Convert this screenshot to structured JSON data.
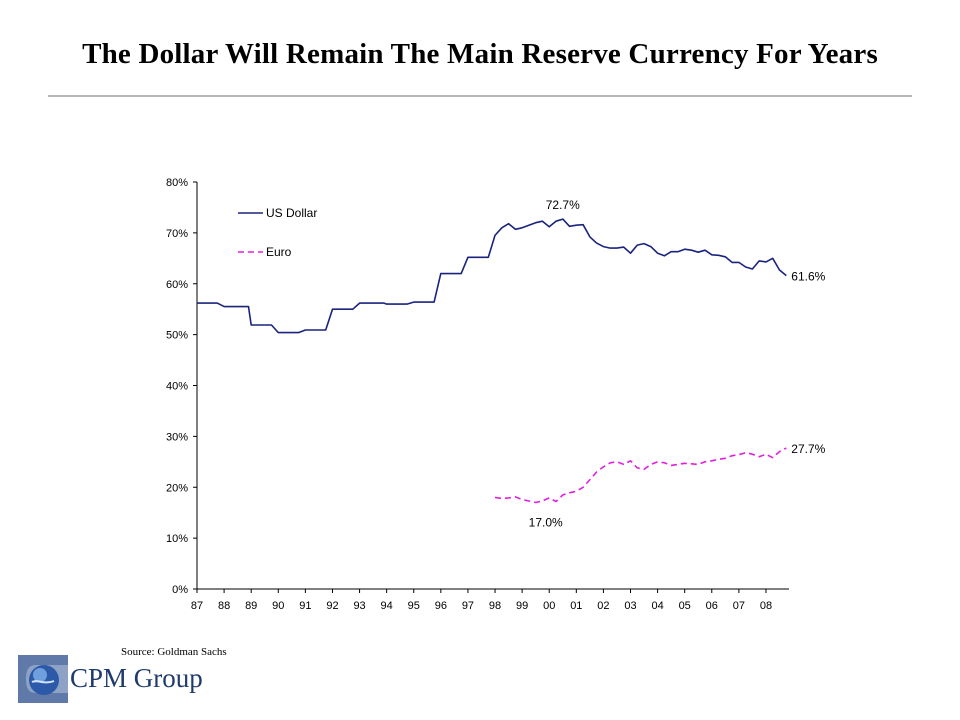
{
  "slide": {
    "title": "The Dollar Will Remain The Main Reserve Currency For Years",
    "source": "Source: Goldman Sachs",
    "brand_name": "CPM Group",
    "logo_icon": "globe-icon"
  },
  "chart_data": {
    "type": "line",
    "title": "",
    "xlabel": "",
    "ylabel": "",
    "x_ticks": [
      "87",
      "88",
      "89",
      "90",
      "91",
      "92",
      "93",
      "94",
      "95",
      "96",
      "97",
      "98",
      "99",
      "00",
      "01",
      "02",
      "03",
      "04",
      "05",
      "06",
      "07",
      "08"
    ],
    "xlim": [
      1987,
      2008.85
    ],
    "y_ticks": [
      "0%",
      "10%",
      "20%",
      "30%",
      "40%",
      "50%",
      "60%",
      "70%",
      "80%"
    ],
    "ylim": [
      0,
      80
    ],
    "grid": false,
    "legend_position": "top-left",
    "series": [
      {
        "name": "US Dollar",
        "color": "#1a237e",
        "style": "solid",
        "points": [
          [
            1987.0,
            56.2
          ],
          [
            1987.75,
            56.2
          ],
          [
            1988.0,
            55.5
          ],
          [
            1988.9,
            55.5
          ],
          [
            1989.0,
            51.9
          ],
          [
            1989.75,
            51.9
          ],
          [
            1990.0,
            50.4
          ],
          [
            1990.75,
            50.4
          ],
          [
            1991.0,
            50.9
          ],
          [
            1991.75,
            50.9
          ],
          [
            1992.0,
            55.0
          ],
          [
            1992.75,
            55.0
          ],
          [
            1993.0,
            56.2
          ],
          [
            1993.9,
            56.2
          ],
          [
            1994.0,
            56.0
          ],
          [
            1994.75,
            56.0
          ],
          [
            1995.0,
            56.4
          ],
          [
            1995.75,
            56.4
          ],
          [
            1996.0,
            62.0
          ],
          [
            1996.75,
            62.0
          ],
          [
            1997.0,
            65.2
          ],
          [
            1997.75,
            65.2
          ],
          [
            1998.0,
            69.5
          ],
          [
            1998.25,
            71.0
          ],
          [
            1998.5,
            71.8
          ],
          [
            1998.75,
            70.7
          ],
          [
            1999.0,
            71.0
          ],
          [
            1999.25,
            71.5
          ],
          [
            1999.5,
            72.0
          ],
          [
            1999.75,
            72.3
          ],
          [
            2000.0,
            71.2
          ],
          [
            2000.25,
            72.3
          ],
          [
            2000.5,
            72.7
          ],
          [
            2000.75,
            71.3
          ],
          [
            2001.0,
            71.5
          ],
          [
            2001.25,
            71.6
          ],
          [
            2001.5,
            69.2
          ],
          [
            2001.75,
            68.0
          ],
          [
            2002.0,
            67.3
          ],
          [
            2002.25,
            67.0
          ],
          [
            2002.5,
            67.0
          ],
          [
            2002.75,
            67.2
          ],
          [
            2003.0,
            66.0
          ],
          [
            2003.25,
            67.6
          ],
          [
            2003.5,
            67.9
          ],
          [
            2003.75,
            67.3
          ],
          [
            2004.0,
            66.0
          ],
          [
            2004.25,
            65.5
          ],
          [
            2004.5,
            66.3
          ],
          [
            2004.75,
            66.3
          ],
          [
            2005.0,
            66.8
          ],
          [
            2005.25,
            66.6
          ],
          [
            2005.5,
            66.2
          ],
          [
            2005.75,
            66.6
          ],
          [
            2006.0,
            65.7
          ],
          [
            2006.25,
            65.6
          ],
          [
            2006.5,
            65.3
          ],
          [
            2006.75,
            64.2
          ],
          [
            2007.0,
            64.2
          ],
          [
            2007.25,
            63.3
          ],
          [
            2007.5,
            62.9
          ],
          [
            2007.75,
            64.5
          ],
          [
            2008.0,
            64.3
          ],
          [
            2008.25,
            65.0
          ],
          [
            2008.5,
            62.7
          ],
          [
            2008.75,
            61.6
          ]
        ]
      },
      {
        "name": "Euro",
        "color": "#e020e0",
        "style": "dashed",
        "points": [
          [
            1998.0,
            18.0
          ],
          [
            1998.25,
            17.8
          ],
          [
            1998.5,
            17.9
          ],
          [
            1998.75,
            18.1
          ],
          [
            1999.0,
            17.6
          ],
          [
            1999.25,
            17.3
          ],
          [
            1999.5,
            17.0
          ],
          [
            1999.75,
            17.3
          ],
          [
            2000.0,
            17.9
          ],
          [
            2000.25,
            17.2
          ],
          [
            2000.5,
            18.5
          ],
          [
            2000.75,
            18.9
          ],
          [
            2001.0,
            19.2
          ],
          [
            2001.25,
            20.0
          ],
          [
            2001.5,
            21.5
          ],
          [
            2001.75,
            23.0
          ],
          [
            2002.0,
            24.0
          ],
          [
            2002.25,
            24.8
          ],
          [
            2002.5,
            25.0
          ],
          [
            2002.75,
            24.5
          ],
          [
            2003.0,
            25.2
          ],
          [
            2003.25,
            23.8
          ],
          [
            2003.5,
            23.5
          ],
          [
            2003.75,
            24.5
          ],
          [
            2004.0,
            25.0
          ],
          [
            2004.25,
            24.8
          ],
          [
            2004.5,
            24.3
          ],
          [
            2004.75,
            24.5
          ],
          [
            2005.0,
            24.7
          ],
          [
            2005.25,
            24.6
          ],
          [
            2005.5,
            24.5
          ],
          [
            2005.75,
            25.0
          ],
          [
            2006.0,
            25.2
          ],
          [
            2006.25,
            25.5
          ],
          [
            2006.5,
            25.7
          ],
          [
            2006.75,
            26.2
          ],
          [
            2007.0,
            26.4
          ],
          [
            2007.25,
            26.8
          ],
          [
            2007.5,
            26.5
          ],
          [
            2007.75,
            26.0
          ],
          [
            2008.0,
            26.5
          ],
          [
            2008.25,
            25.8
          ],
          [
            2008.5,
            27.0
          ],
          [
            2008.75,
            27.7
          ]
        ]
      }
    ],
    "annotations": [
      {
        "label": "72.7%",
        "x": 2000.5,
        "y": 72.7,
        "position": "above"
      },
      {
        "label": "61.6%",
        "x": 2008.75,
        "y": 61.6,
        "position": "right"
      },
      {
        "label": "27.7%",
        "x": 2008.75,
        "y": 27.7,
        "position": "right"
      },
      {
        "label": "17.0%",
        "x": 1999.5,
        "y": 17.0,
        "position": "below"
      }
    ]
  }
}
